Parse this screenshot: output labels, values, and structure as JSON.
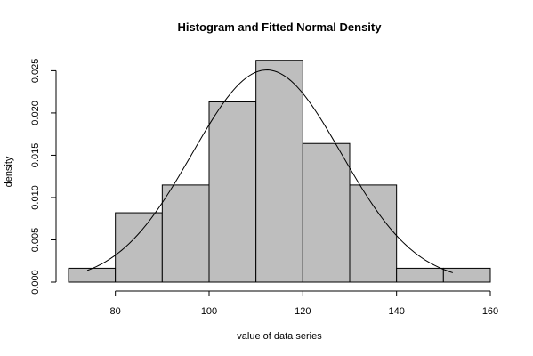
{
  "chart_data": {
    "type": "bar",
    "title": "Histogram and Fitted Normal Density",
    "xlabel": "value of data series",
    "ylabel": "density",
    "xlim": [
      70,
      160
    ],
    "ylim": [
      0,
      0.0262
    ],
    "x_ticks": [
      80,
      100,
      120,
      140,
      160
    ],
    "x_tick_labels": [
      "80",
      "100",
      "120",
      "140",
      "160"
    ],
    "y_ticks": [
      0,
      0.005,
      0.01,
      0.015,
      0.02,
      0.025
    ],
    "y_tick_labels": [
      "0.000",
      "0.005",
      "0.010",
      "0.015",
      "0.020",
      "0.025"
    ],
    "bins": [
      {
        "start": 70,
        "end": 80,
        "density": 0.00164
      },
      {
        "start": 80,
        "end": 90,
        "density": 0.0082
      },
      {
        "start": 90,
        "end": 100,
        "density": 0.01148
      },
      {
        "start": 100,
        "end": 110,
        "density": 0.02131
      },
      {
        "start": 110,
        "end": 120,
        "density": 0.02623
      },
      {
        "start": 120,
        "end": 130,
        "density": 0.01639
      },
      {
        "start": 130,
        "end": 140,
        "density": 0.01148
      },
      {
        "start": 140,
        "end": 150,
        "density": 0.00164
      },
      {
        "start": 150,
        "end": 160,
        "density": 0.00164
      }
    ],
    "fitted_normal": {
      "mean": 112.3,
      "sd": 15.9,
      "x_range": [
        74,
        152
      ]
    },
    "bar_fill": "#bebebe",
    "bar_stroke": "#000000",
    "curve_color": "#000000",
    "grid": false
  }
}
